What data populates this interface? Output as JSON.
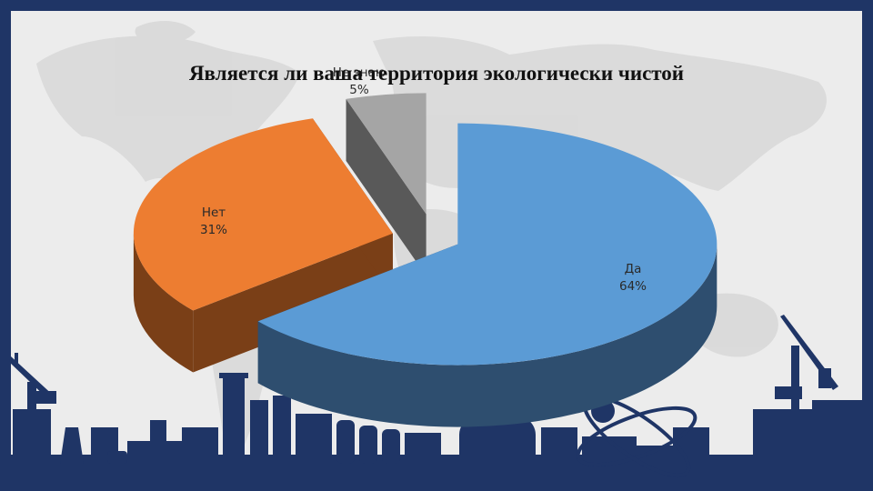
{
  "slide": {
    "colors": {
      "frame": "#1f3566",
      "background": "#ececec",
      "map": "#d8d8d8",
      "industrial_silhouette": "#1f3566"
    },
    "icons": [
      "world-map",
      "industrial-skyline",
      "crane",
      "atom-icon"
    ]
  },
  "chart_data": {
    "type": "pie",
    "style": "3d-exploded",
    "title": "Является ли ваша территория экологически чистой",
    "legend": "none",
    "slices": [
      {
        "label": "Да",
        "value": 64,
        "percent_label": "64%",
        "color": "#5b9bd5",
        "side_color": "#2e4e6f"
      },
      {
        "label": "Нет",
        "value": 31,
        "percent_label": "31%",
        "color": "#ed7d31",
        "side_color": "#7a3f17"
      },
      {
        "label": "Не знаю",
        "value": 5,
        "percent_label": "5%",
        "color": "#a5a5a5",
        "side_color": "#595959"
      }
    ]
  }
}
